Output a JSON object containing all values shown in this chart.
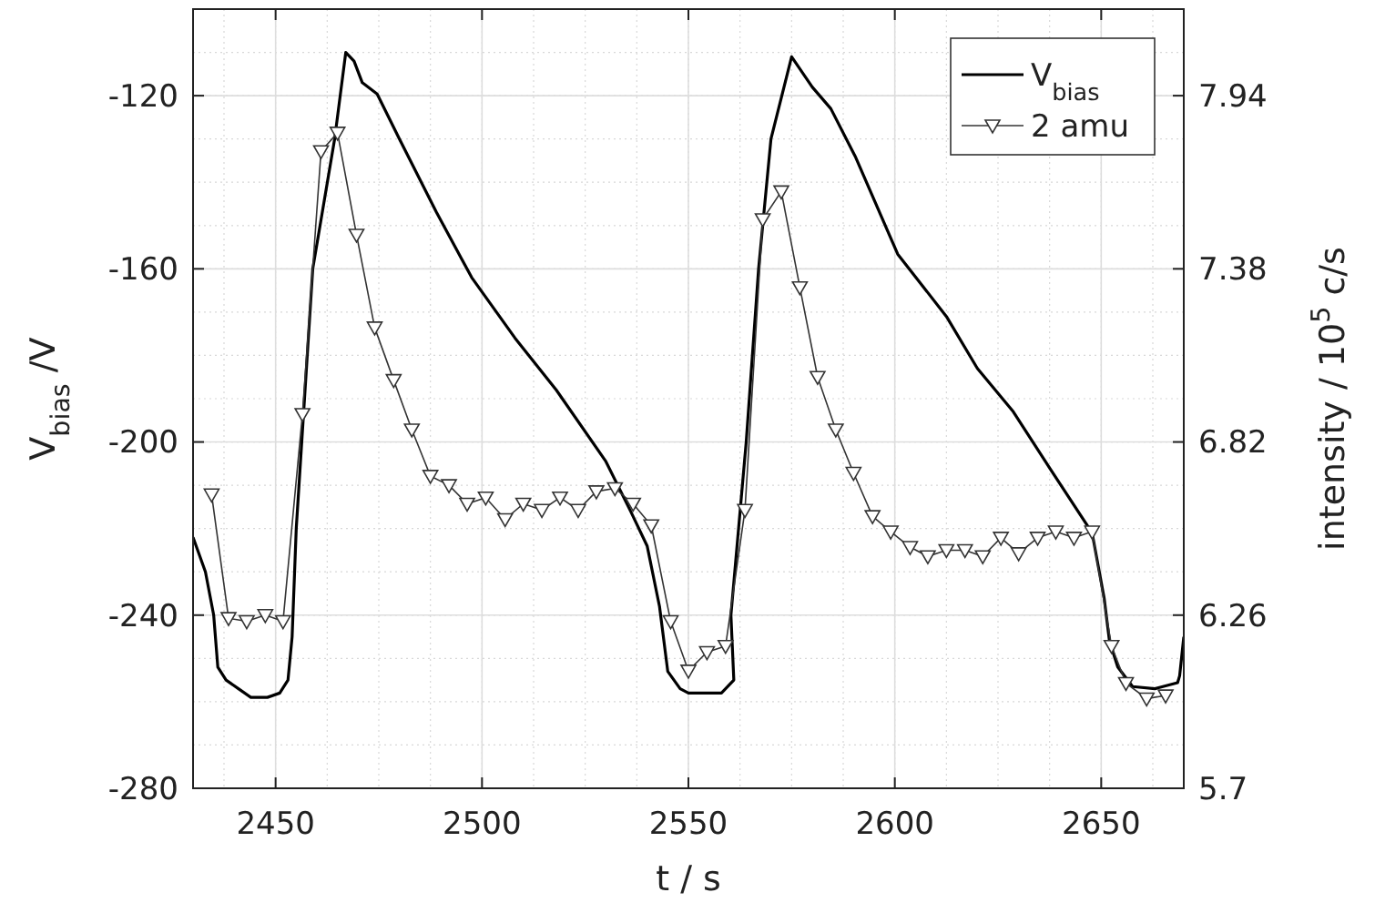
{
  "chart_data": {
    "type": "line",
    "xlabel": "t / s",
    "ylabel": "V$_{bias}$ /V",
    "y2label": "intensity / 10$^{5}$ c/s",
    "xlim": [
      2430,
      2670
    ],
    "xticks": [
      2450,
      2500,
      2550,
      2600,
      2650
    ],
    "ylim": [
      -280,
      -100
    ],
    "yticks": [
      -280,
      -240,
      -200,
      -160,
      -120
    ],
    "y2lim": [
      5.7,
      8.22
    ],
    "y2ticks": [
      5.7,
      6.26,
      6.82,
      7.38,
      7.94
    ],
    "grid": true,
    "legend": "top right",
    "series": [
      {
        "name": "V$_{bias}$",
        "color": "#000000",
        "marker": "none",
        "x": [
          2430,
          2433,
          2435,
          2436,
          2438,
          2441,
          2444,
          2448,
          2451,
          2453,
          2454,
          2455,
          2459,
          2464.3,
          2467,
          2469,
          2471,
          2474.6,
          2480,
          2489,
          2497.5,
          2508,
          2518,
          2530,
          2536,
          2540,
          2543,
          2545,
          2548,
          2550,
          2558,
          2561,
          2560.3,
          2564,
          2567,
          2570,
          2575,
          2580,
          2584.5,
          2590.4,
          2600.7,
          2612.5,
          2620,
          2628.7,
          2637.5,
          2647.8,
          2650.7,
          2652,
          2654,
          2657.6,
          2663,
          2668.5,
          2669,
          2670
        ],
        "values": [
          -222,
          -230,
          -240,
          -252,
          -255,
          -257,
          -259,
          -259,
          -258,
          -255,
          -245,
          -220,
          -160,
          -130,
          -110,
          -112,
          -117,
          -119.6,
          -130,
          -147,
          -162,
          -176,
          -188,
          -204.5,
          -216,
          -224,
          -238,
          -253,
          -257,
          -258,
          -258,
          -255,
          -240,
          -200,
          -160,
          -130,
          -111,
          -118,
          -123,
          -134,
          -156.6,
          -171,
          -183,
          -193,
          -206,
          -221,
          -236,
          -246,
          -252,
          -256.5,
          -257,
          -255.6,
          -254,
          -245
        ]
      },
      {
        "name": "2 amu",
        "color": "#333333",
        "marker": "triangle",
        "axis": "y2",
        "x": [
          2434.5,
          2438.6,
          2443,
          2447.5,
          2451.8,
          2456.5,
          2461,
          2465,
          2469.6,
          2474,
          2478.6,
          2483,
          2487.5,
          2492,
          2496.4,
          2500.9,
          2505.6,
          2510,
          2514.5,
          2518.9,
          2523.3,
          2527.7,
          2532.2,
          2536.6,
          2541,
          2545.7,
          2550,
          2554.5,
          2559,
          2563.7,
          2568,
          2572.5,
          2577,
          2581.3,
          2585.7,
          2590,
          2594.6,
          2599,
          2603.7,
          2608,
          2612.5,
          2617,
          2621.3,
          2625.7,
          2630,
          2634.6,
          2639,
          2643.4,
          2647.8,
          2652.5,
          2656,
          2661,
          2665.6
        ],
        "values": [
          6.65,
          6.25,
          6.24,
          6.26,
          6.24,
          6.91,
          7.76,
          7.82,
          7.49,
          7.19,
          7.02,
          6.86,
          6.71,
          6.68,
          6.62,
          6.64,
          6.57,
          6.62,
          6.6,
          6.64,
          6.6,
          6.66,
          6.67,
          6.62,
          6.55,
          6.24,
          6.08,
          6.14,
          6.16,
          6.6,
          7.54,
          7.63,
          7.32,
          7.03,
          6.86,
          6.72,
          6.58,
          6.53,
          6.48,
          6.45,
          6.47,
          6.47,
          6.45,
          6.51,
          6.46,
          6.51,
          6.53,
          6.51,
          6.53,
          6.16,
          6.04,
          5.99,
          6.0
        ]
      }
    ]
  }
}
